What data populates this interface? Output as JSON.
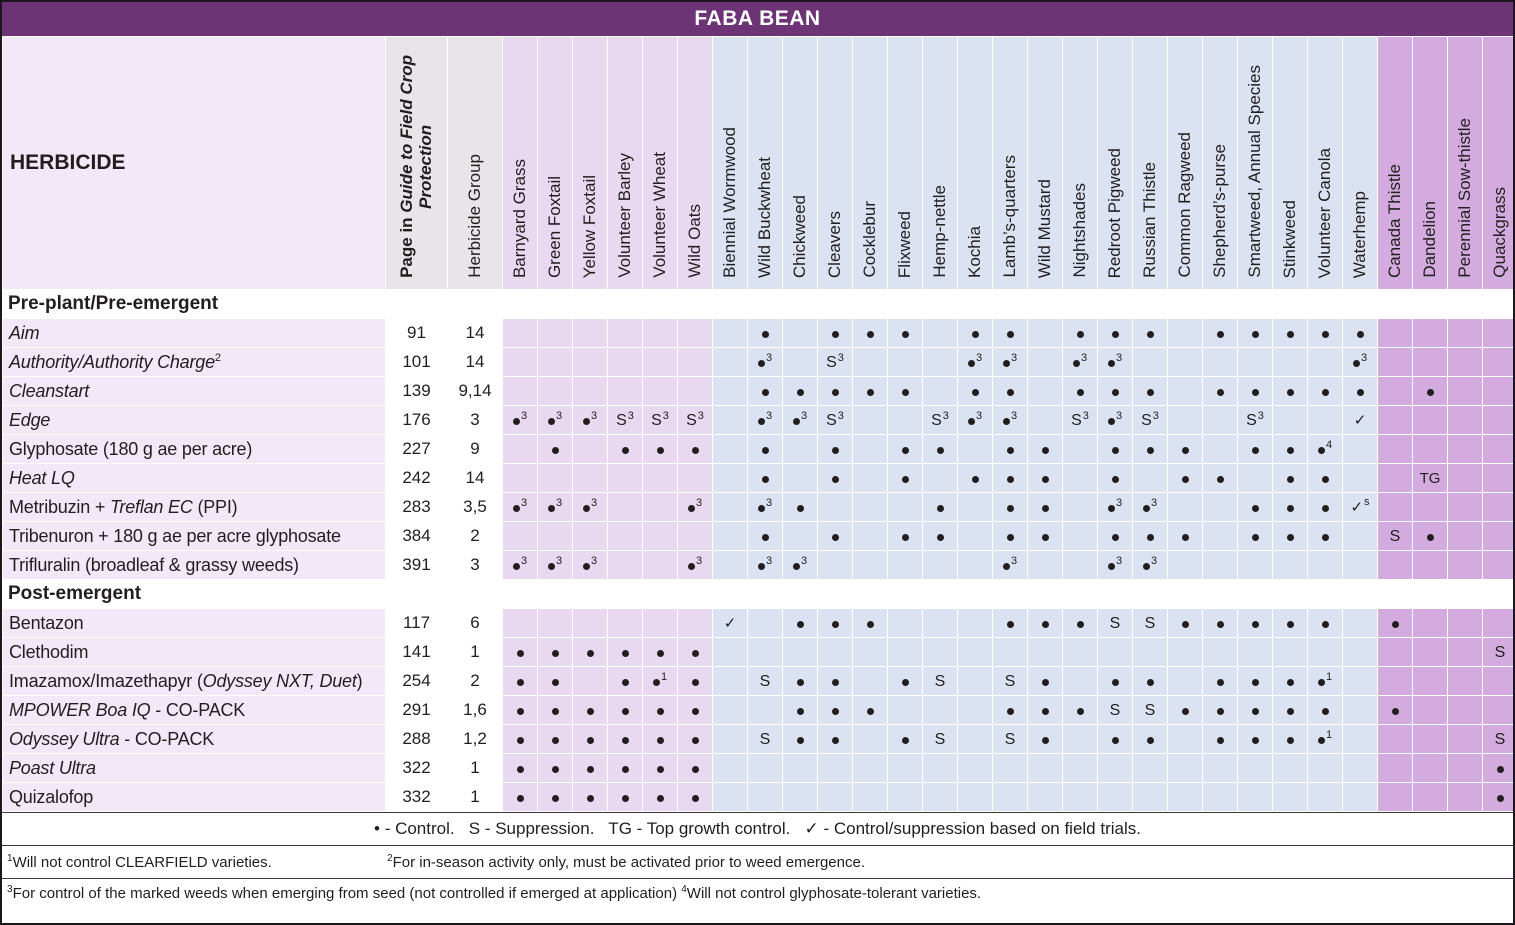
{
  "title": "FABA BEAN",
  "colors": {
    "title-bg": "#6c3375",
    "grass": "#e9d9f0",
    "broadleaf": "#dbe3f3",
    "perennial": "#d4abdf",
    "label-col": "#f2e8f7",
    "fixed-header": "#e8e5e9",
    "ink": "#221e1f"
  },
  "header": {
    "herbicide_label": "HERBICIDE",
    "page_header_lines": [
      [
        {
          "t": "Page in ",
          "i": false
        },
        {
          "t": "Guide to Field Crop",
          "i": true
        }
      ],
      [
        {
          "t": "Protection",
          "i": true
        }
      ]
    ],
    "group_label": "Herbicide Group"
  },
  "columns": [
    {
      "label": "Barnyard Grass",
      "category": "grass"
    },
    {
      "label": "Green Foxtail",
      "category": "grass"
    },
    {
      "label": "Yellow Foxtail",
      "category": "grass"
    },
    {
      "label": "Volunteer Barley",
      "category": "grass"
    },
    {
      "label": "Volunteer Wheat",
      "category": "grass"
    },
    {
      "label": "Wild Oats",
      "category": "grass"
    },
    {
      "label": "Biennial Wormwood",
      "category": "broadleaf"
    },
    {
      "label": "Wild Buckwheat",
      "category": "broadleaf"
    },
    {
      "label": "Chickweed",
      "category": "broadleaf"
    },
    {
      "label": "Cleavers",
      "category": "broadleaf"
    },
    {
      "label": "Cocklebur",
      "category": "broadleaf"
    },
    {
      "label": "Flixweed",
      "category": "broadleaf"
    },
    {
      "label": "Hemp-nettle",
      "category": "broadleaf"
    },
    {
      "label": "Kochia",
      "category": "broadleaf"
    },
    {
      "label": "Lamb’s-quarters",
      "category": "broadleaf"
    },
    {
      "label": "Wild Mustard",
      "category": "broadleaf"
    },
    {
      "label": "Nightshades",
      "category": "broadleaf"
    },
    {
      "label": "Redroot Pigweed",
      "category": "broadleaf"
    },
    {
      "label": "Russian Thistle",
      "category": "broadleaf"
    },
    {
      "label": "Common Ragweed",
      "category": "broadleaf"
    },
    {
      "label": "Shepherd’s-purse",
      "category": "broadleaf"
    },
    {
      "label": "Smartweed, Annual Species",
      "category": "broadleaf"
    },
    {
      "label": "Stinkweed",
      "category": "broadleaf"
    },
    {
      "label": "Volunteer Canola",
      "category": "broadleaf"
    },
    {
      "label": "Waterhemp",
      "category": "broadleaf"
    },
    {
      "label": "Canada Thistle",
      "category": "perennial"
    },
    {
      "label": "Dandelion",
      "category": "perennial"
    },
    {
      "label": "Perennial Sow-thistle",
      "category": "perennial"
    },
    {
      "label": "Quackgrass",
      "category": "perennial"
    }
  ],
  "sections": [
    {
      "label": "Pre-plant/Pre-emergent",
      "rows": [
        {
          "name_parts": [
            {
              "t": "Aim",
              "i": true
            }
          ],
          "page": "91",
          "group": "14",
          "cells": {
            "7": "d",
            "9": "d",
            "10": "d",
            "11": "d",
            "13": "d",
            "14": "d",
            "16": "d",
            "17": "d",
            "18": "d",
            "20": "d",
            "21": "d",
            "22": "d",
            "23": "d",
            "24": "d"
          }
        },
        {
          "name_parts": [
            {
              "t": "Authority/Authority Charge",
              "i": true
            }
          ],
          "name_sup": "2",
          "page": "101",
          "group": "14",
          "cells": {
            "7": "d3",
            "9": "S3",
            "13": "d3",
            "14": "d3",
            "16": "d3",
            "17": "d3",
            "24": "d3"
          }
        },
        {
          "name_parts": [
            {
              "t": "Cleanstart",
              "i": true
            }
          ],
          "page": "139",
          "group": "9,14",
          "cells": {
            "7": "d",
            "8": "d",
            "9": "d",
            "10": "d",
            "11": "d",
            "13": "d",
            "14": "d",
            "16": "d",
            "17": "d",
            "18": "d",
            "20": "d",
            "21": "d",
            "22": "d",
            "23": "d",
            "24": "d",
            "26": "d"
          }
        },
        {
          "name_parts": [
            {
              "t": "Edge",
              "i": true
            }
          ],
          "page": "176",
          "group": "3",
          "cells": {
            "0": "d3",
            "1": "d3",
            "2": "d3",
            "3": "S3",
            "4": "S3",
            "5": "S3",
            "7": "d3",
            "8": "d3",
            "9": "S3",
            "12": "S3",
            "13": "d3",
            "14": "d3",
            "16": "S3",
            "17": "d3",
            "18": "S3",
            "21": "S3",
            "24": "ck"
          }
        },
        {
          "name_parts": [
            {
              "t": "Glyphosate (180 g ae per acre)",
              "i": false
            }
          ],
          "page": "227",
          "group": "9",
          "cells": {
            "1": "d",
            "3": "d",
            "4": "d",
            "5": "d",
            "7": "d",
            "9": "d",
            "11": "d",
            "12": "d",
            "14": "d",
            "15": "d",
            "17": "d",
            "18": "d",
            "19": "d",
            "21": "d",
            "22": "d",
            "23": "d4"
          }
        },
        {
          "name_parts": [
            {
              "t": "Heat LQ",
              "i": true
            }
          ],
          "page": "242",
          "group": "14",
          "cells": {
            "7": "d",
            "9": "d",
            "11": "d",
            "13": "d",
            "14": "d",
            "15": "d",
            "17": "d",
            "19": "d",
            "20": "d",
            "22": "d",
            "23": "d",
            "26": "TG"
          }
        },
        {
          "name_parts": [
            {
              "t": "Metribuzin + ",
              "i": false
            },
            {
              "t": "Treflan EC",
              "i": true
            },
            {
              "t": " (PPI)",
              "i": false
            }
          ],
          "page": "283",
          "group": "3,5",
          "cells": {
            "0": "d3",
            "1": "d3",
            "2": "d3",
            "5": "d3",
            "7": "d3",
            "8": "d",
            "12": "d",
            "14": "d",
            "15": "d",
            "17": "d3",
            "18": "d3",
            "21": "d",
            "22": "d",
            "23": "d",
            "24": "ckS"
          }
        },
        {
          "name_parts": [
            {
              "t": "Tribenuron + 180 g ae per acre glyphosate",
              "i": false
            }
          ],
          "page": "384",
          "group": "2",
          "cells": {
            "7": "d",
            "9": "d",
            "11": "d",
            "12": "d",
            "14": "d",
            "15": "d",
            "17": "d",
            "18": "d",
            "19": "d",
            "21": "d",
            "22": "d",
            "23": "d",
            "25": "S",
            "26": "d"
          }
        },
        {
          "name_parts": [
            {
              "t": "Trifluralin (broadleaf & grassy weeds)",
              "i": false
            }
          ],
          "page": "391",
          "group": "3",
          "cells": {
            "0": "d3",
            "1": "d3",
            "2": "d3",
            "5": "d3",
            "7": "d3",
            "8": "d3",
            "14": "d3",
            "17": "d3",
            "18": "d3"
          }
        }
      ]
    },
    {
      "label": "Post-emergent",
      "rows": [
        {
          "name_parts": [
            {
              "t": "Bentazon",
              "i": false
            }
          ],
          "page": "117",
          "group": "6",
          "cells": {
            "6": "ck",
            "8": "d",
            "9": "d",
            "10": "d",
            "14": "d",
            "15": "d",
            "16": "d",
            "17": "S",
            "18": "S",
            "19": "d",
            "20": "d",
            "21": "d",
            "22": "d",
            "23": "d",
            "25": "d"
          }
        },
        {
          "name_parts": [
            {
              "t": "Clethodim",
              "i": false
            }
          ],
          "page": "141",
          "group": "1",
          "cells": {
            "0": "d",
            "1": "d",
            "2": "d",
            "3": "d",
            "4": "d",
            "5": "d",
            "28": "S"
          }
        },
        {
          "name_parts": [
            {
              "t": "Imazamox/Imazethapyr (",
              "i": false
            },
            {
              "t": "Odyssey NXT, Duet",
              "i": true
            },
            {
              "t": ")",
              "i": false
            }
          ],
          "page": "254",
          "group": "2",
          "cells": {
            "0": "d",
            "1": "d",
            "3": "d",
            "4": "d1",
            "5": "d",
            "7": "S",
            "8": "d",
            "9": "d",
            "11": "d",
            "12": "S",
            "14": "S",
            "15": "d",
            "17": "d",
            "18": "d",
            "20": "d",
            "21": "d",
            "22": "d",
            "23": "d1"
          }
        },
        {
          "name_parts": [
            {
              "t": "MPOWER Boa IQ",
              "i": true
            },
            {
              "t": " - CO-PACK",
              "i": false
            }
          ],
          "page": "291",
          "group": "1,6",
          "cells": {
            "0": "d",
            "1": "d",
            "2": "d",
            "3": "d",
            "4": "d",
            "5": "d",
            "8": "d",
            "9": "d",
            "10": "d",
            "14": "d",
            "15": "d",
            "16": "d",
            "17": "S",
            "18": "S",
            "19": "d",
            "20": "d",
            "21": "d",
            "22": "d",
            "23": "d",
            "25": "d"
          }
        },
        {
          "name_parts": [
            {
              "t": "Odyssey Ultra",
              "i": true
            },
            {
              "t": " - CO-PACK",
              "i": false
            }
          ],
          "page": "288",
          "group": "1,2",
          "cells": {
            "0": "d",
            "1": "d",
            "2": "d",
            "3": "d",
            "4": "d",
            "5": "d",
            "7": "S",
            "8": "d",
            "9": "d",
            "11": "d",
            "12": "S",
            "14": "S",
            "15": "d",
            "17": "d",
            "18": "d",
            "20": "d",
            "21": "d",
            "22": "d",
            "23": "d1",
            "28": "S"
          }
        },
        {
          "name_parts": [
            {
              "t": "Poast Ultra",
              "i": true
            }
          ],
          "page": "322",
          "group": "1",
          "cells": {
            "0": "d",
            "1": "d",
            "2": "d",
            "3": "d",
            "4": "d",
            "5": "d",
            "28": "d"
          }
        },
        {
          "name_parts": [
            {
              "t": "Quizalofop",
              "i": false
            }
          ],
          "page": "332",
          "group": "1",
          "cells": {
            "0": "d",
            "1": "d",
            "2": "d",
            "3": "d",
            "4": "d",
            "5": "d",
            "28": "d"
          }
        }
      ]
    }
  ],
  "legend": "• - Control.   S - Suppression.   TG - Top growth control.   ✓ - Control/suppression based on field trials.",
  "footnotes": [
    {
      "sup": "1",
      "text": "Will not control CLEARFIELD varieties."
    },
    {
      "sup": "2",
      "text": "For in-season activity only, must be activated prior to weed emergence."
    },
    {
      "sup": "3",
      "text": "For control of the marked weeds when emerging from seed (not controlled if emerged at application) "
    },
    {
      "sup": "4",
      "text": "Will not control glyphosate-tolerant varieties."
    }
  ]
}
